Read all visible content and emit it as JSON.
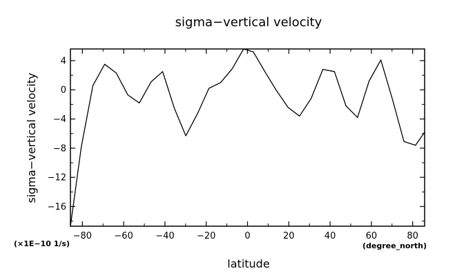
{
  "chart_data": {
    "type": "line",
    "title": "sigma−vertical velocity",
    "xlabel": "latitude",
    "ylabel": "sigma−vertical velocity",
    "x_units": "(degree_north)",
    "y_units": "(×1E−10 1/s)",
    "xlim": [
      -85.8,
      85.8
    ],
    "ylim": [
      -18.7,
      5.6
    ],
    "x_ticks": [
      -80,
      -60,
      -40,
      -20,
      0,
      20,
      40,
      60,
      80
    ],
    "x_tick_labels": [
      "−80",
      "−60",
      "−40",
      "−20",
      "0",
      "20",
      "40",
      "60",
      "80"
    ],
    "y_ticks": [
      -16,
      -12,
      -8,
      -4,
      0,
      4
    ],
    "y_tick_labels": [
      "−16",
      "−12",
      "−8",
      "−4",
      "0",
      "4"
    ],
    "grid": false,
    "series": [
      {
        "name": "",
        "color": "#000000",
        "x": [
          -85.8,
          -80.5,
          -74.9,
          -69.2,
          -63.6,
          -58.0,
          -52.4,
          -46.7,
          -41.1,
          -35.5,
          -29.9,
          -24.3,
          -18.7,
          -13.0,
          -7.4,
          -1.9,
          2.8,
          8.4,
          14.0,
          19.6,
          25.2,
          30.8,
          36.5,
          42.1,
          47.7,
          53.3,
          58.9,
          64.6,
          70.2,
          75.8,
          81.4,
          85.8
        ],
        "y": [
          -18.7,
          -7.8,
          0.6,
          3.5,
          2.3,
          -0.7,
          -1.8,
          1.1,
          2.5,
          -2.5,
          -6.3,
          -3.3,
          0.2,
          1.0,
          2.9,
          5.6,
          5.2,
          2.5,
          -0.1,
          -2.4,
          -3.6,
          -1.2,
          2.8,
          2.5,
          -2.2,
          -3.8,
          1.2,
          4.1,
          -1.3,
          -7.1,
          -7.6,
          -5.8
        ]
      }
    ]
  }
}
